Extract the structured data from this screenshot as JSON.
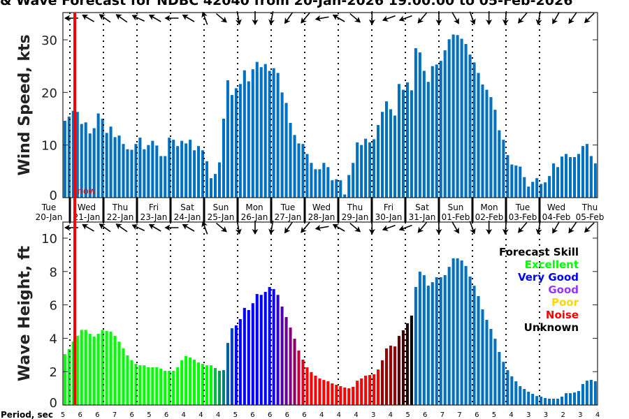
{
  "title": "& Wave Forecast for NDBC 42040 from 20-Jan-2026 19:00:00 to 05-Feb-2026",
  "now_label": "now",
  "period_label": "Period, sec",
  "legend": {
    "title": "Forecast Skill",
    "items": [
      {
        "label": "Excellent",
        "color": "#00ff00"
      },
      {
        "label": "Very Good",
        "color": "#0000ff"
      },
      {
        "label": "Good",
        "color": "#9933ff"
      },
      {
        "label": "Poor",
        "color": "#ffd700"
      },
      {
        "label": "Noise",
        "color": "#ff0000"
      },
      {
        "label": "Unknown",
        "color": "#000000"
      }
    ]
  },
  "chart_data": [
    {
      "type": "bar",
      "ylabel": "Wind Speed, kts",
      "ylim": [
        0,
        35
      ],
      "yticks": [
        0,
        10,
        20,
        30
      ],
      "bar_interval_hours": 3,
      "color": "#0070c0",
      "values": [
        14.6,
        15.4,
        16.5,
        16.3,
        14.0,
        14.3,
        12.2,
        13.2,
        16.0,
        15.0,
        12.3,
        13.5,
        11.5,
        11.8,
        10.2,
        9.2,
        9.1,
        10.2,
        11.4,
        9.2,
        10.0,
        10.8,
        9.9,
        7.9,
        7.9,
        11.4,
        11.0,
        9.8,
        10.8,
        10.3,
        11.0,
        9.0,
        9.8,
        9.0,
        6.9,
        3.7,
        4.5,
        6.7,
        15.0,
        22.3,
        19.5,
        20.8,
        21.6,
        24.2,
        22.1,
        24.4,
        25.8,
        24.8,
        25.4,
        24.1,
        24.6,
        23.7,
        20.0,
        18.0,
        14.2,
        11.9,
        10.3,
        10.2,
        8.3,
        6.6,
        5.4,
        5.4,
        6.6,
        5.8,
        3.3,
        3.5,
        3.3,
        0.6,
        4.3,
        6.6,
        10.5,
        10.0,
        11.2,
        10.5,
        11.1,
        13.8,
        16.3,
        18.3,
        16.8,
        15.6,
        21.6,
        20.5,
        21.9,
        20.4,
        28.4,
        27.6,
        24.1,
        22.0,
        25.0,
        25.3,
        26.0,
        28.0,
        30.1,
        31.0,
        30.9,
        30.2,
        29.2,
        27.2,
        25.7,
        23.7,
        21.5,
        20.5,
        19.1,
        16.7,
        12.8,
        11.0,
        8.1,
        6.3,
        6.1,
        5.9,
        3.9,
        2.1,
        3.0,
        3.7,
        2.6,
        2.9,
        4.1,
        6.5,
        5.8,
        7.8,
        8.3,
        7.7,
        7.7,
        8.3,
        9.8,
        10.2,
        7.9,
        6.5
      ],
      "direction_deg": [
        180,
        -150,
        -145,
        -145,
        -155,
        -150,
        180,
        -150,
        -110,
        40,
        80,
        90,
        100,
        125,
        130,
        170,
        -150,
        40,
        90,
        160,
        160,
        130,
        90,
        60,
        70,
        90,
        95,
        130,
        100,
        120,
        125,
        135
      ]
    },
    {
      "type": "bar",
      "ylabel": "Wave Height, ft",
      "ylim": [
        0,
        11
      ],
      "yticks": [
        0,
        2,
        4,
        6,
        8,
        10
      ],
      "bar_interval_hours": 3,
      "values": [
        3.05,
        3.35,
        3.8,
        4.15,
        4.5,
        4.5,
        4.27,
        4.1,
        4.27,
        4.5,
        4.43,
        4.4,
        4.15,
        3.8,
        3.4,
        2.97,
        2.68,
        2.47,
        2.38,
        2.38,
        2.26,
        2.26,
        2.26,
        2.18,
        2.05,
        2.05,
        2.05,
        2.26,
        2.68,
        2.93,
        2.85,
        2.72,
        2.55,
        2.47,
        2.38,
        2.38,
        2.22,
        2.05,
        2.09,
        3.72,
        4.6,
        4.77,
        5.15,
        5.82,
        5.69,
        6.1,
        6.65,
        6.6,
        6.78,
        7.07,
        6.95,
        6.6,
        5.9,
        5.27,
        4.64,
        3.97,
        3.26,
        2.72,
        2.26,
        1.97,
        1.76,
        1.59,
        1.5,
        1.42,
        1.3,
        1.21,
        1.13,
        1.05,
        1.0,
        1.09,
        1.46,
        1.59,
        1.76,
        1.8,
        1.84,
        2.13,
        2.68,
        3.39,
        3.56,
        3.51,
        4.14,
        4.48,
        4.9,
        5.36,
        7.07,
        7.99,
        7.78,
        7.15,
        7.36,
        7.66,
        7.66,
        7.78,
        8.28,
        8.79,
        8.79,
        8.66,
        8.33,
        7.7,
        7.15,
        6.53,
        5.73,
        5.1,
        4.56,
        3.97,
        3.18,
        2.59,
        2.09,
        1.72,
        1.42,
        1.13,
        0.96,
        0.8,
        0.67,
        0.54,
        0.5,
        0.42,
        0.38,
        0.38,
        0.38,
        0.5,
        0.71,
        0.71,
        0.75,
        0.84,
        1.26,
        1.46,
        1.51,
        1.42
      ],
      "color_runs": [
        [
          36,
          "#00ff00"
        ],
        [
          1,
          "#00c040"
        ],
        [
          1,
          "#00a050"
        ],
        [
          1,
          "#008070"
        ],
        [
          1,
          "#0060a0"
        ],
        [
          1,
          "#0040c0"
        ],
        [
          9,
          "#0000ff"
        ],
        [
          1,
          "#1000f0"
        ],
        [
          1,
          "#3000d0"
        ],
        [
          1,
          "#5000b0"
        ],
        [
          1,
          "#6a0090"
        ],
        [
          1,
          "#800080"
        ],
        [
          1,
          "#900060"
        ],
        [
          1,
          "#c00040"
        ],
        [
          1,
          "#e00020"
        ],
        [
          18,
          "#ff0000"
        ],
        [
          4,
          "#a00000"
        ],
        [
          1,
          "#600000"
        ],
        [
          1,
          "#400000"
        ],
        [
          1,
          "#200000"
        ],
        [
          1,
          "#000000"
        ],
        [
          44,
          "#0070c0"
        ]
      ],
      "direction_deg": [
        180,
        -150,
        -145,
        -145,
        -155,
        -150,
        180,
        -150,
        -110,
        40,
        80,
        90,
        100,
        125,
        130,
        170,
        -150,
        40,
        90,
        160,
        160,
        130,
        90,
        60,
        70,
        90,
        95,
        130,
        100,
        120,
        125,
        135
      ],
      "period_sec": [
        5,
        6,
        6,
        7,
        6,
        5,
        6,
        4,
        4,
        4,
        5,
        6,
        6,
        6,
        6,
        4,
        4,
        4,
        3,
        4,
        5,
        6,
        7,
        7,
        6,
        5,
        4,
        3,
        3,
        2,
        3,
        4
      ]
    }
  ],
  "days": [
    {
      "dow": "Tue",
      "date": "20-Jan"
    },
    {
      "dow": "Wed",
      "date": "21-Jan"
    },
    {
      "dow": "Thu",
      "date": "22-Jan"
    },
    {
      "dow": "Fri",
      "date": "23-Jan"
    },
    {
      "dow": "Sat",
      "date": "24-Jan"
    },
    {
      "dow": "Sun",
      "date": "25-Jan"
    },
    {
      "dow": "Mon",
      "date": "26-Jan"
    },
    {
      "dow": "Tue",
      "date": "27-Jan"
    },
    {
      "dow": "Wed",
      "date": "28-Jan"
    },
    {
      "dow": "Thu",
      "date": "29-Jan"
    },
    {
      "dow": "Fri",
      "date": "30-Jan"
    },
    {
      "dow": "Sat",
      "date": "31-Jan"
    },
    {
      "dow": "Sun",
      "date": "01-Feb"
    },
    {
      "dow": "Mon",
      "date": "02-Feb"
    },
    {
      "dow": "Tue",
      "date": "03-Feb"
    },
    {
      "dow": "Wed",
      "date": "04-Feb"
    },
    {
      "dow": "Thu",
      "date": "05-Feb"
    }
  ]
}
